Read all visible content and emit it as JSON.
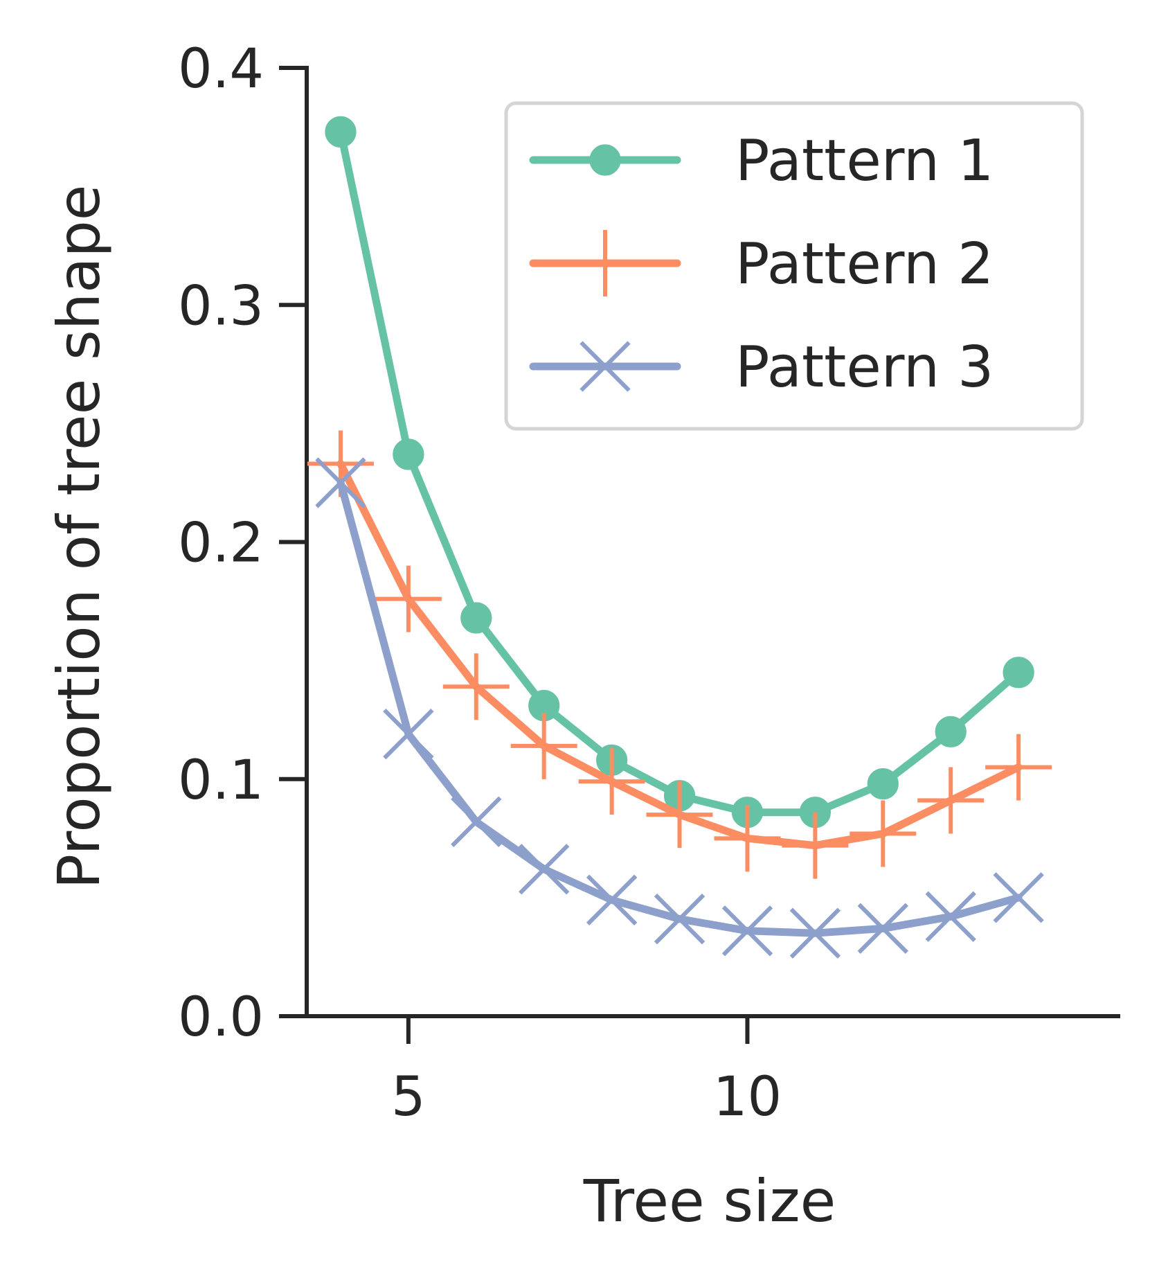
{
  "chart_data": {
    "type": "line",
    "title": "",
    "xlabel": "Tree size",
    "ylabel": "Proportion of tree shape",
    "xlim": [
      3.5,
      15.5
    ],
    "ylim": [
      0.0,
      0.4
    ],
    "xticks": [
      5,
      10
    ],
    "xtick_labels": [
      "5",
      "10"
    ],
    "yticks": [
      0.0,
      0.1,
      0.2,
      0.3,
      0.4
    ],
    "ytick_labels": [
      "0.0",
      "0.1",
      "0.2",
      "0.3",
      "0.4"
    ],
    "legend_position": "top-right",
    "x": [
      4,
      5,
      6,
      7,
      8,
      9,
      10,
      11,
      12,
      13,
      14
    ],
    "series": [
      {
        "name": "Pattern 1",
        "marker": "circle",
        "color": "#66c2a5",
        "values": [
          0.373,
          0.237,
          0.168,
          0.131,
          0.108,
          0.093,
          0.086,
          0.086,
          0.098,
          0.12,
          0.145
        ]
      },
      {
        "name": "Pattern 2",
        "marker": "plus",
        "color": "#fc8d62",
        "values": [
          0.233,
          0.176,
          0.139,
          0.114,
          0.099,
          0.085,
          0.075,
          0.072,
          0.077,
          0.091,
          0.105
        ]
      },
      {
        "name": "Pattern 3",
        "marker": "x",
        "color": "#8da0cb",
        "values": [
          0.225,
          0.119,
          0.082,
          0.062,
          0.049,
          0.041,
          0.036,
          0.035,
          0.037,
          0.042,
          0.05
        ]
      }
    ]
  }
}
